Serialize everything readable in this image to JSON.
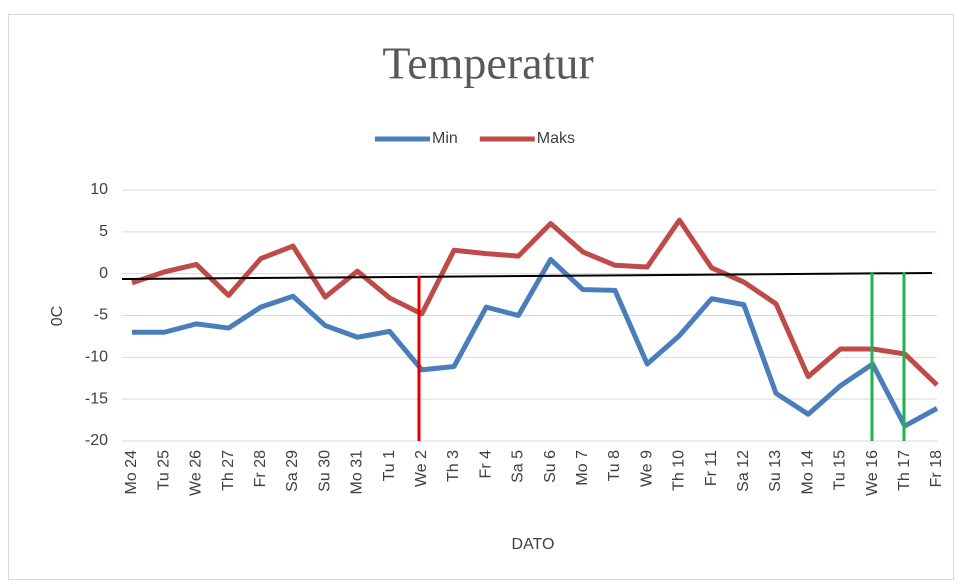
{
  "chart_data": {
    "type": "line",
    "title": "Temperatur",
    "xlabel": "DATO",
    "ylabel": "0C",
    "categories": [
      "Mo 24",
      "Tu 25",
      "We 26",
      "Th 27",
      "Fr 28",
      "Sa 29",
      "Su 30",
      "Mo 31",
      "Tu 1",
      "We 2",
      "Th 3",
      "Fr 4",
      "Sa 5",
      "Su 6",
      "Mo 7",
      "Tu 8",
      "We 9",
      "Th 10",
      "Fr 11",
      "Sa 12",
      "Su 13",
      "Mo 14",
      "Tu 15",
      "We 16",
      "Th 17",
      "Fr 18"
    ],
    "series": [
      {
        "name": "Min",
        "color": "#4a7ebb",
        "values": [
          -7,
          -7,
          -6,
          -6.5,
          -4,
          -2.7,
          -6.2,
          -7.6,
          -6.9,
          -11.5,
          -11.1,
          -4,
          -5,
          1.7,
          -1.9,
          -2,
          -10.8,
          -7.4,
          -3,
          -3.7,
          -14.3,
          -16.8,
          -13.4,
          -10.8,
          -18.2,
          -16.1
        ]
      },
      {
        "name": "Maks",
        "color": "#be4b48",
        "values": [
          -1.1,
          0.2,
          1.1,
          -2.6,
          1.8,
          3.3,
          -2.8,
          0.3,
          -2.9,
          -4.8,
          2.8,
          2.4,
          2.1,
          6,
          2.6,
          1,
          0.8,
          6.4,
          0.7,
          -1,
          -3.6,
          -12.3,
          -9,
          -9,
          -9.6,
          -13.3
        ]
      }
    ],
    "ylim": [
      -20,
      10
    ],
    "yticks": [
      10,
      5,
      0,
      -5,
      -10,
      -15,
      -20
    ],
    "grid": true,
    "legend": "top"
  }
}
